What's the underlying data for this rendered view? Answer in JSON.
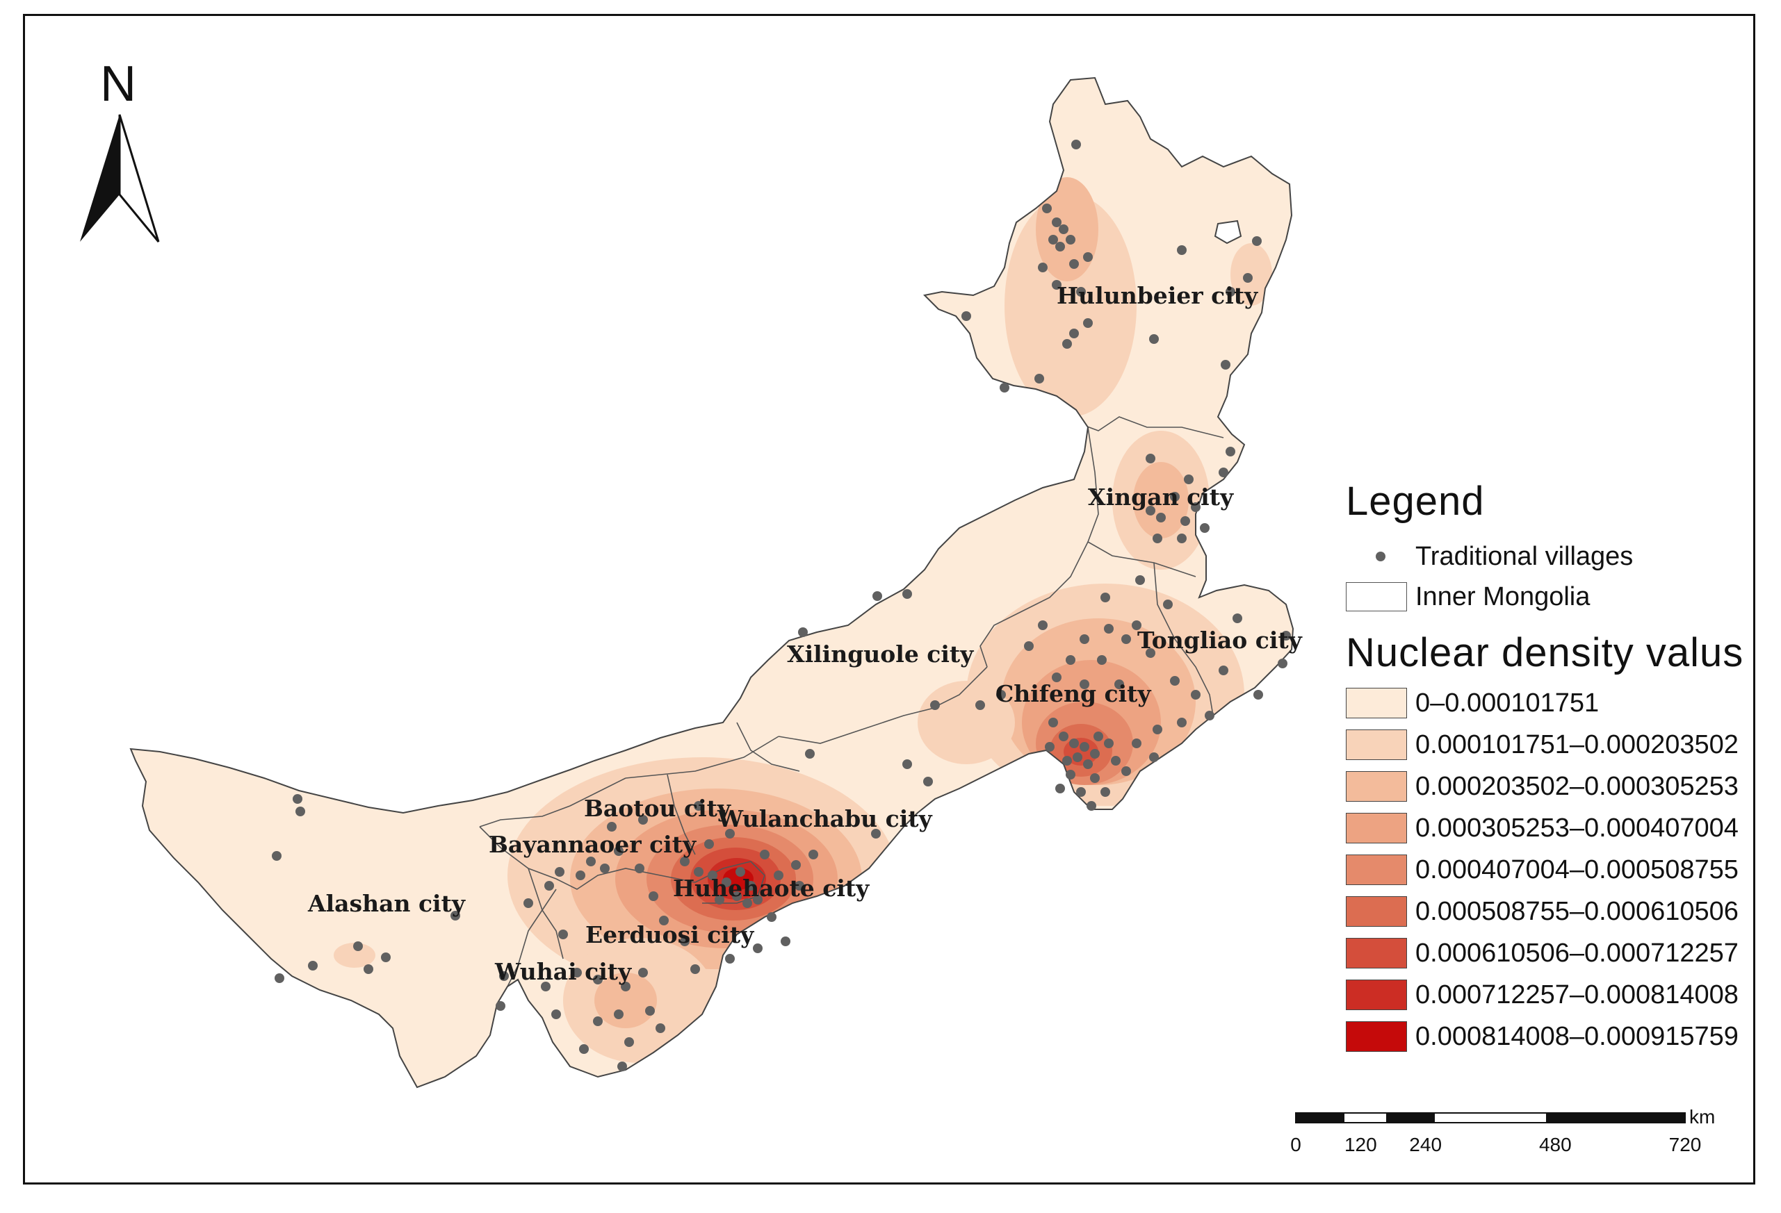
{
  "legend": {
    "title": "Legend",
    "villages_label": "Traditional villages",
    "region_label": "Inner Mongolia",
    "density_title": "Nuclear density valus",
    "classes": [
      {
        "label": "0–0.000101751",
        "color": "#fdebd9"
      },
      {
        "label": "0.000101751–0.000203502",
        "color": "#f8d3b9"
      },
      {
        "label": "0.000203502–0.000305253",
        "color": "#f3bb9b"
      },
      {
        "label": "0.000305253–0.000407004",
        "color": "#eda382"
      },
      {
        "label": "0.000407004–0.000508755",
        "color": "#e58a6b"
      },
      {
        "label": "0.000508755–0.000610506",
        "color": "#dc6d51"
      },
      {
        "label": "0.000610506–0.000712257",
        "color": "#d44e3b"
      },
      {
        "label": "0.000712257–0.000814008",
        "color": "#cc2d24"
      },
      {
        "label": "0.000814008–0.000915759",
        "color": "#c50a0a"
      }
    ]
  },
  "north_arrow": {
    "letter": "N"
  },
  "scale_bar": {
    "unit": "km",
    "ticks": [
      "0",
      "120",
      "240",
      "480",
      "720"
    ]
  },
  "cities": {
    "hulunbeier": "Hulunbeier city",
    "xingan": "Xingan city",
    "tongliao": "Tongliao city",
    "chifeng": "Chifeng city",
    "xilinguole": "Xilinguole city",
    "baotou": "Baotou city",
    "wulanchabu": "Wulanchabu city",
    "bayannaoer": "Bayannaoer city",
    "huhehaote": "Huhehaote city",
    "alashan": "Alashan city",
    "eerduosi": "Eerduosi city",
    "wuhai": "Wuhai city"
  },
  "colors": {
    "village_dot": "#606060",
    "region_base": "#fdebd9",
    "boundary": "#555555"
  }
}
